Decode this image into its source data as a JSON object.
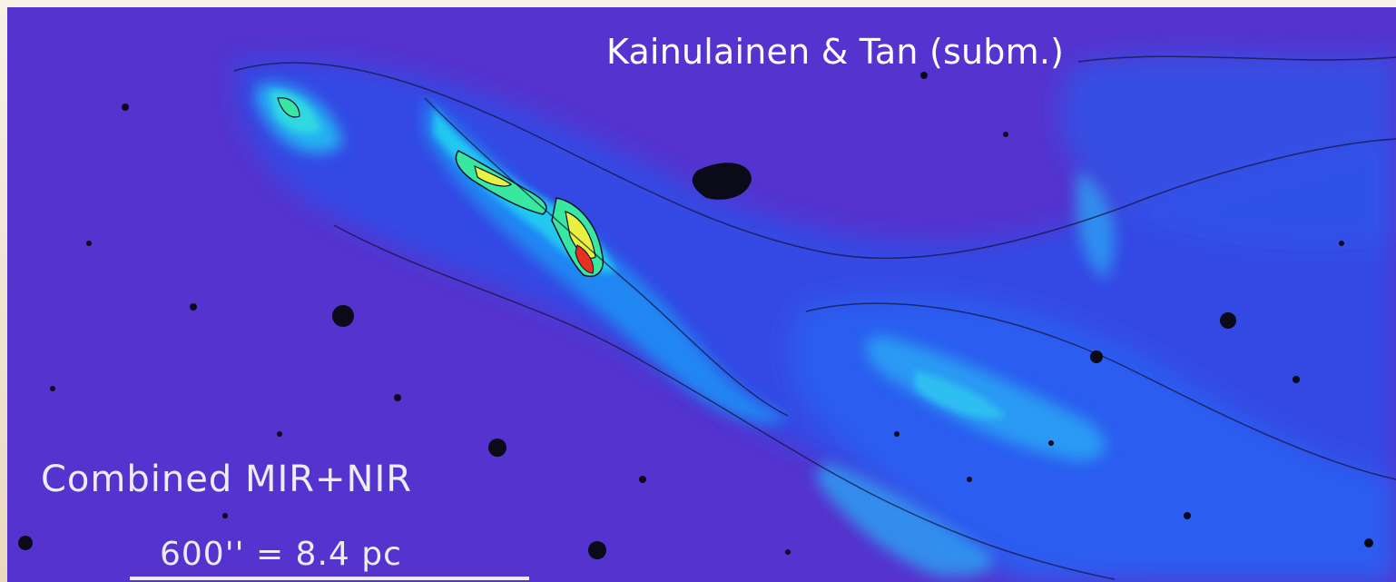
{
  "image": {
    "credit": "Kainulainen & Tan (subm.)",
    "map_label": "Combined MIR+NIR",
    "scale_label": "600'' = 8.4 pc",
    "colors": {
      "background": "#4b36d6",
      "diffuse": "#2456f0",
      "filament_cyan": "#22c8f0",
      "filament_green": "#38e8a0",
      "peak_yellow": "#e8f040",
      "peak_red": "#e83020",
      "star_black": "#0a0a18",
      "frame": "#f4ede2"
    }
  }
}
